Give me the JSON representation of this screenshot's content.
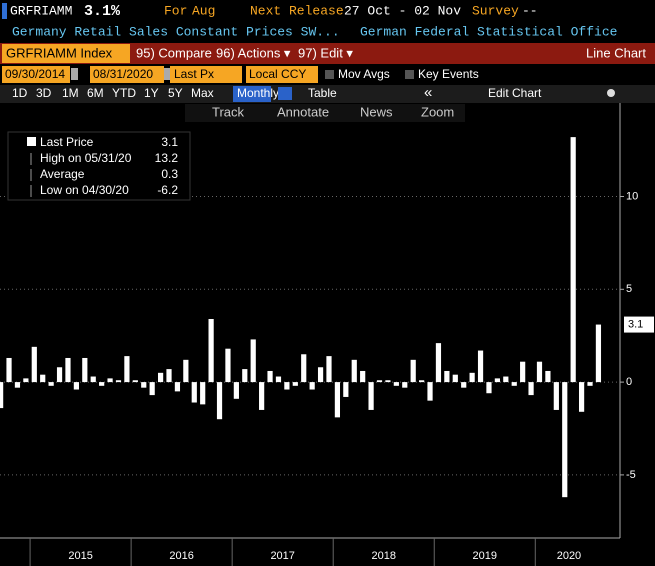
{
  "toolbar": {
    "ticker": "GRFRIAMM",
    "last": "3.1%",
    "period_label": "For",
    "period": "Aug",
    "release_label": "Next Release",
    "release": "27 Oct - 02 Nov",
    "survey_label": "Survey",
    "survey": "--",
    "description": "Germany Retail Sales Constant Prices SW...",
    "source": "German Federal Statistical Office"
  },
  "menu": {
    "security": "GRFRIAMM Index",
    "compare": "95) Compare",
    "actions": "96) Actions ▾",
    "edit": "97) Edit ▾",
    "chart_type": "Line Chart"
  },
  "settings": {
    "start": "09/30/2014",
    "end": "08/31/2020",
    "field": "Last Px",
    "currency": "Local CCY",
    "mov_avgs": "Mov Avgs",
    "key_events": "Key Events"
  },
  "periods": [
    "1D",
    "3D",
    "1M",
    "6M",
    "YTD",
    "1Y",
    "5Y",
    "Max"
  ],
  "frequency": "Monthly ▼",
  "table": "Table",
  "collapse": "«",
  "edit_chart": "Edit Chart",
  "tools": [
    "Track",
    "Annotate",
    "News",
    "Zoom"
  ],
  "chart_data": {
    "type": "bar",
    "color": "#ffffff",
    "categories": [
      null,
      null,
      null,
      null,
      null,
      null,
      null,
      null,
      null,
      null,
      null,
      null,
      null,
      null,
      null,
      null,
      null,
      null,
      null,
      null,
      null,
      null,
      null,
      null,
      null,
      null,
      null,
      null,
      null,
      null,
      null,
      null,
      null,
      null,
      null,
      null,
      null,
      null,
      null,
      null,
      null,
      null,
      null,
      null,
      null,
      null,
      null,
      null,
      null,
      null,
      null,
      null,
      null,
      null,
      null,
      null,
      null,
      null,
      null,
      null,
      null,
      null,
      null,
      null,
      null,
      null,
      null,
      null,
      null,
      null,
      null,
      null
    ],
    "values": [
      -1.4,
      1.3,
      -0.3,
      0.2,
      1.9,
      0.4,
      -0.2,
      0.8,
      1.3,
      -0.4,
      1.3,
      0.3,
      -0.2,
      0.2,
      0.1,
      1.4,
      0.1,
      -0.3,
      -0.7,
      0.5,
      0.7,
      -0.5,
      1.2,
      -1.1,
      -1.2,
      3.4,
      -2.0,
      1.8,
      -0.9,
      0.7,
      2.3,
      -1.5,
      0.6,
      0.3,
      -0.4,
      -0.2,
      1.5,
      -0.4,
      0.8,
      1.4,
      -1.9,
      -0.8,
      1.2,
      0.6,
      -1.5,
      0.1,
      0.1,
      -0.2,
      -0.3,
      1.2,
      0.1,
      -1.0,
      2.1,
      0.6,
      0.4,
      -0.3,
      0.5,
      1.7,
      -0.6,
      0.2,
      0.3,
      -0.2,
      1.1,
      -0.7,
      1.1,
      0.6,
      -1.5,
      -6.2,
      13.2,
      -1.6,
      -0.2,
      3.1
    ],
    "year_labels": [
      "2015",
      "2016",
      "2017",
      "2018",
      "2019",
      "2020"
    ],
    "ylim": [
      -8.4,
      15.2
    ],
    "yticks": [
      -5,
      0,
      5,
      10
    ],
    "grid": true,
    "legend": [
      {
        "label": "Last Price",
        "value": 3.1
      },
      {
        "label": "High on 05/31/20",
        "value": 13.2
      },
      {
        "label": "Average",
        "value": 0.3
      },
      {
        "label": "Low on 04/30/20",
        "value": -6.2
      }
    ]
  }
}
